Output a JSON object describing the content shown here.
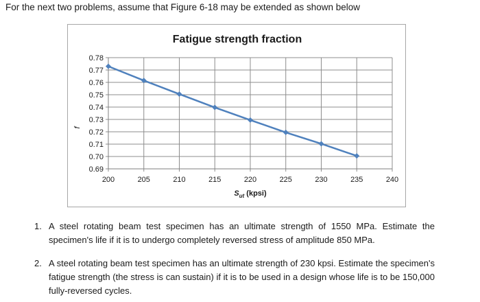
{
  "intro_text": "For the next two problems, assume that Figure 6-18 may be extended as shown below",
  "chart_data": {
    "type": "line",
    "title": "Fatigue strength fraction",
    "ylabel": "f",
    "xlabel_main": "S",
    "xlabel_sub": "ut",
    "xlabel_rest": " (kpsi)",
    "x_ticks": [
      "200",
      "205",
      "210",
      "215",
      "220",
      "225",
      "230",
      "235",
      "240"
    ],
    "y_ticks": [
      "0.69",
      "0.70",
      "0.71",
      "0.72",
      "0.73",
      "0.74",
      "0.75",
      "0.76",
      "0.77",
      "0.78"
    ],
    "xlim": [
      200,
      240
    ],
    "ylim": [
      0.69,
      0.78
    ],
    "x": [
      200,
      205,
      210,
      215,
      220,
      225,
      230,
      235
    ],
    "y": [
      0.773,
      0.7615,
      0.7505,
      0.7397,
      0.7295,
      0.7195,
      0.7103,
      0.7005
    ],
    "grid": true,
    "line_color": "#4f81bd",
    "grid_color": "#8c8c8c"
  },
  "problems": [
    {
      "number": "1.",
      "text": "A steel rotating beam test specimen has an ultimate strength of 1550 MPa. Estimate the specimen's life if it is to undergo completely reversed stress of amplitude 850 MPa."
    },
    {
      "number": "2.",
      "text": "A steel rotating beam test specimen has an ultimate strength of 230 kpsi. Estimate the specimen's fatigue strength (the stress is can sustain) if it is to be used in a design whose life is to be 150,000 fully-reversed cycles."
    }
  ]
}
